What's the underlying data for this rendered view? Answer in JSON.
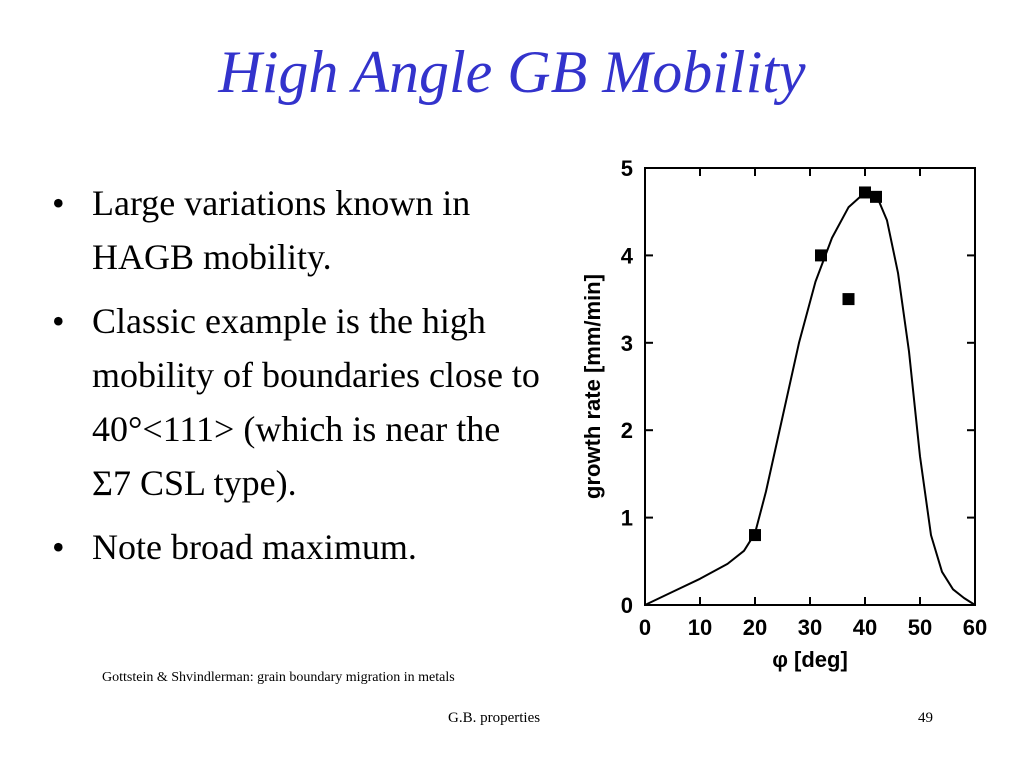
{
  "slide": {
    "title": "High Angle GB Mobility",
    "bullets": [
      {
        "glyph": "•",
        "text": "Large variations known in HAGB mobility."
      },
      {
        "glyph": "•",
        "text": "Classic example is the high mobility of boundaries close to 40°<111> (which is near the Σ7 CSL type)."
      },
      {
        "glyph": "•",
        "text": "Note broad maximum."
      }
    ],
    "citation": "Gottstein & Shvindlerman: grain boundary migration in metals",
    "footer": "G.B. properties",
    "page_number": "49"
  },
  "chart_data": {
    "type": "scatter",
    "title": "",
    "xlabel": "φ [deg]",
    "ylabel": "growth rate [mm/min]",
    "xlim": [
      0,
      60
    ],
    "ylim": [
      0,
      5
    ],
    "xticks": [
      0,
      10,
      20,
      30,
      40,
      50,
      60
    ],
    "yticks": [
      0,
      1,
      2,
      3,
      4,
      5
    ],
    "grid": false,
    "points": [
      {
        "x": 20,
        "y": 0.8
      },
      {
        "x": 32,
        "y": 4.0
      },
      {
        "x": 37,
        "y": 3.5
      },
      {
        "x": 40,
        "y": 4.72
      },
      {
        "x": 42,
        "y": 4.67
      }
    ],
    "curve": [
      [
        0,
        0.0
      ],
      [
        5,
        0.15
      ],
      [
        10,
        0.3
      ],
      [
        15,
        0.47
      ],
      [
        18,
        0.62
      ],
      [
        20,
        0.82
      ],
      [
        22,
        1.3
      ],
      [
        25,
        2.15
      ],
      [
        28,
        3.0
      ],
      [
        31,
        3.7
      ],
      [
        34,
        4.2
      ],
      [
        37,
        4.55
      ],
      [
        40,
        4.72
      ],
      [
        42,
        4.7
      ],
      [
        44,
        4.4
      ],
      [
        46,
        3.8
      ],
      [
        48,
        2.9
      ],
      [
        50,
        1.7
      ],
      [
        52,
        0.8
      ],
      [
        54,
        0.38
      ],
      [
        56,
        0.18
      ],
      [
        58,
        0.08
      ],
      [
        60,
        0.0
      ]
    ]
  }
}
